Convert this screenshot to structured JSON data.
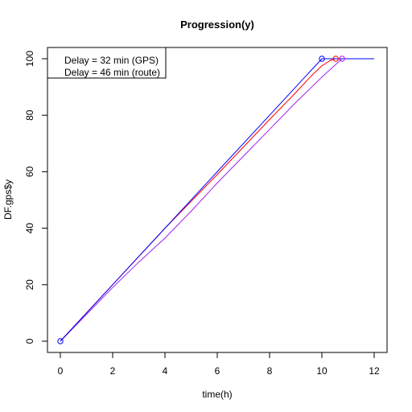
{
  "chart_data": {
    "type": "line",
    "title": "Progression(y)",
    "xlabel": "time(h)",
    "ylabel": "DF.gps$y",
    "xlim": [
      0,
      12
    ],
    "ylim": [
      0,
      100
    ],
    "xticks": [
      0,
      2,
      4,
      6,
      8,
      10,
      12
    ],
    "yticks": [
      0,
      20,
      40,
      60,
      80,
      100
    ],
    "grid": false,
    "legend": {
      "position": "top-left",
      "entries": [
        "Delay = 32 min (GPS)",
        "Delay = 46 min (route)"
      ]
    },
    "series": [
      {
        "name": "blue",
        "color": "#0000ff",
        "x": [
          0,
          2,
          4,
          6,
          8,
          10,
          12
        ],
        "y": [
          0,
          20,
          40,
          60,
          80,
          100,
          100
        ],
        "markers": [
          {
            "x": 0,
            "y": 0
          },
          {
            "x": 10,
            "y": 100
          }
        ]
      },
      {
        "name": "red",
        "color": "#ff0000",
        "x": [
          0,
          2,
          4,
          6,
          8,
          9,
          9.6,
          10,
          10.3,
          10.5,
          12
        ],
        "y": [
          0,
          20,
          40,
          59,
          78.5,
          88,
          94,
          97.5,
          99.3,
          100,
          100
        ],
        "markers": [
          {
            "x": 10.53,
            "y": 100
          }
        ]
      },
      {
        "name": "purple",
        "color": "#a020f0",
        "x": [
          0,
          1,
          2,
          3,
          4,
          5,
          6,
          7,
          8,
          9,
          10,
          10.77,
          12
        ],
        "y": [
          0,
          9.5,
          19,
          28,
          36.5,
          46,
          56,
          65.5,
          75,
          84.5,
          93.5,
          100,
          100
        ],
        "markers": [
          {
            "x": 10.77,
            "y": 100
          }
        ]
      }
    ]
  }
}
